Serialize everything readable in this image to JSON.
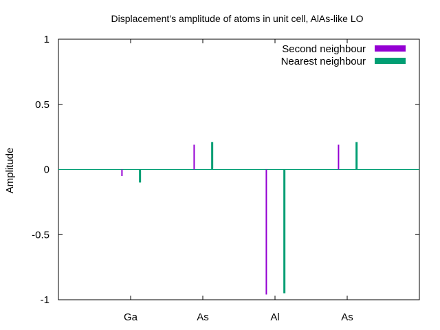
{
  "chart_data": {
    "type": "bar",
    "title": "Displacement’s amplitude of atoms in unit cell, AlAs-like LO",
    "xlabel": "",
    "ylabel": "Amplitude",
    "ylim": [
      -1,
      1
    ],
    "yticks": [
      1,
      0.5,
      0,
      -0.5,
      -1
    ],
    "ytick_labels": [
      "1",
      "0.5",
      "0",
      "-0.5",
      "-1"
    ],
    "xlim": [
      -1,
      4
    ],
    "categories": [
      "Ga",
      "As",
      "Al",
      "As"
    ],
    "grid": false,
    "legend_position": "top-right",
    "zero_line_color": "#009e73",
    "series": [
      {
        "name": "Second neighbour",
        "color": "#9400d3",
        "offset": -0.12,
        "values": [
          -0.05,
          0.19,
          -0.96,
          0.19
        ]
      },
      {
        "name": "Nearest neighbour",
        "color": "#009e73",
        "offset": 0.13,
        "values": [
          -0.1,
          0.21,
          -0.95,
          0.21
        ]
      }
    ]
  }
}
